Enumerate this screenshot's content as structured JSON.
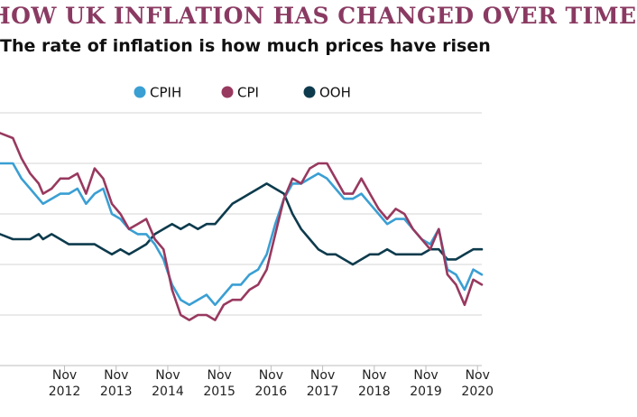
{
  "header": {
    "title": "HOW UK INFLATION HAS CHANGED OVER TIME",
    "subtitle": "The rate of inflation is how much prices have risen"
  },
  "chart_data": {
    "type": "line",
    "title": "HOW UK INFLATION HAS CHANGED OVER TIME",
    "subtitle": "The rate of inflation is how much prices have risen",
    "xlabel": "",
    "ylabel": "",
    "legend_position": "top-center",
    "grid": "horizontal",
    "x_ticks": [
      {
        "month": "Nov",
        "year": "2012"
      },
      {
        "month": "Nov",
        "year": "2013"
      },
      {
        "month": "Nov",
        "year": "2014"
      },
      {
        "month": "Nov",
        "year": "2015"
      },
      {
        "month": "Nov",
        "year": "2016"
      },
      {
        "month": "Nov",
        "year": "2017"
      },
      {
        "month": "Nov",
        "year": "2018"
      },
      {
        "month": "Nov",
        "year": "2019"
      },
      {
        "month": "Nov",
        "year": "2020"
      }
    ],
    "xlim": [
      "2011-08",
      "2020-12"
    ],
    "ylim": [
      -1,
      4
    ],
    "series": [
      {
        "name": "CPIH",
        "color": "#3a9fd3",
        "points": [
          [
            "2011-08",
            3.0
          ],
          [
            "2011-11",
            3.0
          ],
          [
            "2012-01",
            2.7
          ],
          [
            "2012-03",
            2.5
          ],
          [
            "2012-05",
            2.3
          ],
          [
            "2012-06",
            2.2
          ],
          [
            "2012-08",
            2.3
          ],
          [
            "2012-10",
            2.4
          ],
          [
            "2012-12",
            2.4
          ],
          [
            "2013-02",
            2.5
          ],
          [
            "2013-04",
            2.2
          ],
          [
            "2013-06",
            2.4
          ],
          [
            "2013-08",
            2.5
          ],
          [
            "2013-10",
            2.0
          ],
          [
            "2013-12",
            1.9
          ],
          [
            "2014-02",
            1.7
          ],
          [
            "2014-04",
            1.6
          ],
          [
            "2014-06",
            1.6
          ],
          [
            "2014-08",
            1.4
          ],
          [
            "2014-10",
            1.1
          ],
          [
            "2014-12",
            0.6
          ],
          [
            "2015-02",
            0.3
          ],
          [
            "2015-04",
            0.2
          ],
          [
            "2015-06",
            0.3
          ],
          [
            "2015-08",
            0.4
          ],
          [
            "2015-10",
            0.2
          ],
          [
            "2015-12",
            0.4
          ],
          [
            "2016-02",
            0.6
          ],
          [
            "2016-04",
            0.6
          ],
          [
            "2016-06",
            0.8
          ],
          [
            "2016-08",
            0.9
          ],
          [
            "2016-10",
            1.2
          ],
          [
            "2016-12",
            1.8
          ],
          [
            "2017-02",
            2.3
          ],
          [
            "2017-04",
            2.6
          ],
          [
            "2017-06",
            2.6
          ],
          [
            "2017-08",
            2.7
          ],
          [
            "2017-10",
            2.8
          ],
          [
            "2017-12",
            2.7
          ],
          [
            "2018-02",
            2.5
          ],
          [
            "2018-04",
            2.3
          ],
          [
            "2018-06",
            2.3
          ],
          [
            "2018-08",
            2.4
          ],
          [
            "2018-10",
            2.2
          ],
          [
            "2018-12",
            2.0
          ],
          [
            "2019-02",
            1.8
          ],
          [
            "2019-04",
            1.9
          ],
          [
            "2019-06",
            1.9
          ],
          [
            "2019-08",
            1.7
          ],
          [
            "2019-10",
            1.5
          ],
          [
            "2019-12",
            1.4
          ],
          [
            "2020-02",
            1.7
          ],
          [
            "2020-04",
            0.9
          ],
          [
            "2020-06",
            0.8
          ],
          [
            "2020-08",
            0.5
          ],
          [
            "2020-10",
            0.9
          ],
          [
            "2020-12",
            0.8
          ]
        ]
      },
      {
        "name": "CPI",
        "color": "#98395f",
        "points": [
          [
            "2011-08",
            3.6
          ],
          [
            "2011-11",
            3.5
          ],
          [
            "2012-01",
            3.1
          ],
          [
            "2012-03",
            2.8
          ],
          [
            "2012-05",
            2.6
          ],
          [
            "2012-06",
            2.4
          ],
          [
            "2012-08",
            2.5
          ],
          [
            "2012-10",
            2.7
          ],
          [
            "2012-12",
            2.7
          ],
          [
            "2013-02",
            2.8
          ],
          [
            "2013-04",
            2.4
          ],
          [
            "2013-06",
            2.9
          ],
          [
            "2013-08",
            2.7
          ],
          [
            "2013-10",
            2.2
          ],
          [
            "2013-12",
            2.0
          ],
          [
            "2014-02",
            1.7
          ],
          [
            "2014-04",
            1.8
          ],
          [
            "2014-06",
            1.9
          ],
          [
            "2014-08",
            1.5
          ],
          [
            "2014-10",
            1.3
          ],
          [
            "2014-12",
            0.5
          ],
          [
            "2015-02",
            0.0
          ],
          [
            "2015-04",
            -0.1
          ],
          [
            "2015-06",
            0.0
          ],
          [
            "2015-08",
            0.0
          ],
          [
            "2015-10",
            -0.1
          ],
          [
            "2015-12",
            0.2
          ],
          [
            "2016-02",
            0.3
          ],
          [
            "2016-04",
            0.3
          ],
          [
            "2016-06",
            0.5
          ],
          [
            "2016-08",
            0.6
          ],
          [
            "2016-10",
            0.9
          ],
          [
            "2016-12",
            1.6
          ],
          [
            "2017-02",
            2.3
          ],
          [
            "2017-04",
            2.7
          ],
          [
            "2017-06",
            2.6
          ],
          [
            "2017-08",
            2.9
          ],
          [
            "2017-10",
            3.0
          ],
          [
            "2017-12",
            3.0
          ],
          [
            "2018-02",
            2.7
          ],
          [
            "2018-04",
            2.4
          ],
          [
            "2018-06",
            2.4
          ],
          [
            "2018-08",
            2.7
          ],
          [
            "2018-10",
            2.4
          ],
          [
            "2018-12",
            2.1
          ],
          [
            "2019-02",
            1.9
          ],
          [
            "2019-04",
            2.1
          ],
          [
            "2019-06",
            2.0
          ],
          [
            "2019-08",
            1.7
          ],
          [
            "2019-10",
            1.5
          ],
          [
            "2019-12",
            1.3
          ],
          [
            "2020-02",
            1.7
          ],
          [
            "2020-04",
            0.8
          ],
          [
            "2020-06",
            0.6
          ],
          [
            "2020-08",
            0.2
          ],
          [
            "2020-10",
            0.7
          ],
          [
            "2020-12",
            0.6
          ]
        ]
      },
      {
        "name": "OOH",
        "color": "#0d3b4d",
        "points": [
          [
            "2011-08",
            1.6
          ],
          [
            "2011-11",
            1.5
          ],
          [
            "2012-01",
            1.5
          ],
          [
            "2012-03",
            1.5
          ],
          [
            "2012-05",
            1.6
          ],
          [
            "2012-06",
            1.5
          ],
          [
            "2012-08",
            1.6
          ],
          [
            "2012-10",
            1.5
          ],
          [
            "2012-12",
            1.4
          ],
          [
            "2013-02",
            1.4
          ],
          [
            "2013-04",
            1.4
          ],
          [
            "2013-06",
            1.4
          ],
          [
            "2013-08",
            1.3
          ],
          [
            "2013-10",
            1.2
          ],
          [
            "2013-12",
            1.3
          ],
          [
            "2014-02",
            1.2
          ],
          [
            "2014-04",
            1.3
          ],
          [
            "2014-06",
            1.4
          ],
          [
            "2014-08",
            1.6
          ],
          [
            "2014-10",
            1.7
          ],
          [
            "2014-12",
            1.8
          ],
          [
            "2015-02",
            1.7
          ],
          [
            "2015-04",
            1.8
          ],
          [
            "2015-06",
            1.7
          ],
          [
            "2015-08",
            1.8
          ],
          [
            "2015-10",
            1.8
          ],
          [
            "2015-12",
            2.0
          ],
          [
            "2016-02",
            2.2
          ],
          [
            "2016-04",
            2.3
          ],
          [
            "2016-06",
            2.4
          ],
          [
            "2016-08",
            2.5
          ],
          [
            "2016-10",
            2.6
          ],
          [
            "2016-12",
            2.5
          ],
          [
            "2017-02",
            2.4
          ],
          [
            "2017-04",
            2.0
          ],
          [
            "2017-06",
            1.7
          ],
          [
            "2017-08",
            1.5
          ],
          [
            "2017-10",
            1.3
          ],
          [
            "2017-12",
            1.2
          ],
          [
            "2018-02",
            1.2
          ],
          [
            "2018-04",
            1.1
          ],
          [
            "2018-06",
            1.0
          ],
          [
            "2018-08",
            1.1
          ],
          [
            "2018-10",
            1.2
          ],
          [
            "2018-12",
            1.2
          ],
          [
            "2019-02",
            1.3
          ],
          [
            "2019-04",
            1.2
          ],
          [
            "2019-06",
            1.2
          ],
          [
            "2019-08",
            1.2
          ],
          [
            "2019-10",
            1.2
          ],
          [
            "2019-12",
            1.3
          ],
          [
            "2020-02",
            1.3
          ],
          [
            "2020-04",
            1.1
          ],
          [
            "2020-06",
            1.1
          ],
          [
            "2020-08",
            1.2
          ],
          [
            "2020-10",
            1.3
          ],
          [
            "2020-12",
            1.3
          ]
        ]
      }
    ]
  }
}
